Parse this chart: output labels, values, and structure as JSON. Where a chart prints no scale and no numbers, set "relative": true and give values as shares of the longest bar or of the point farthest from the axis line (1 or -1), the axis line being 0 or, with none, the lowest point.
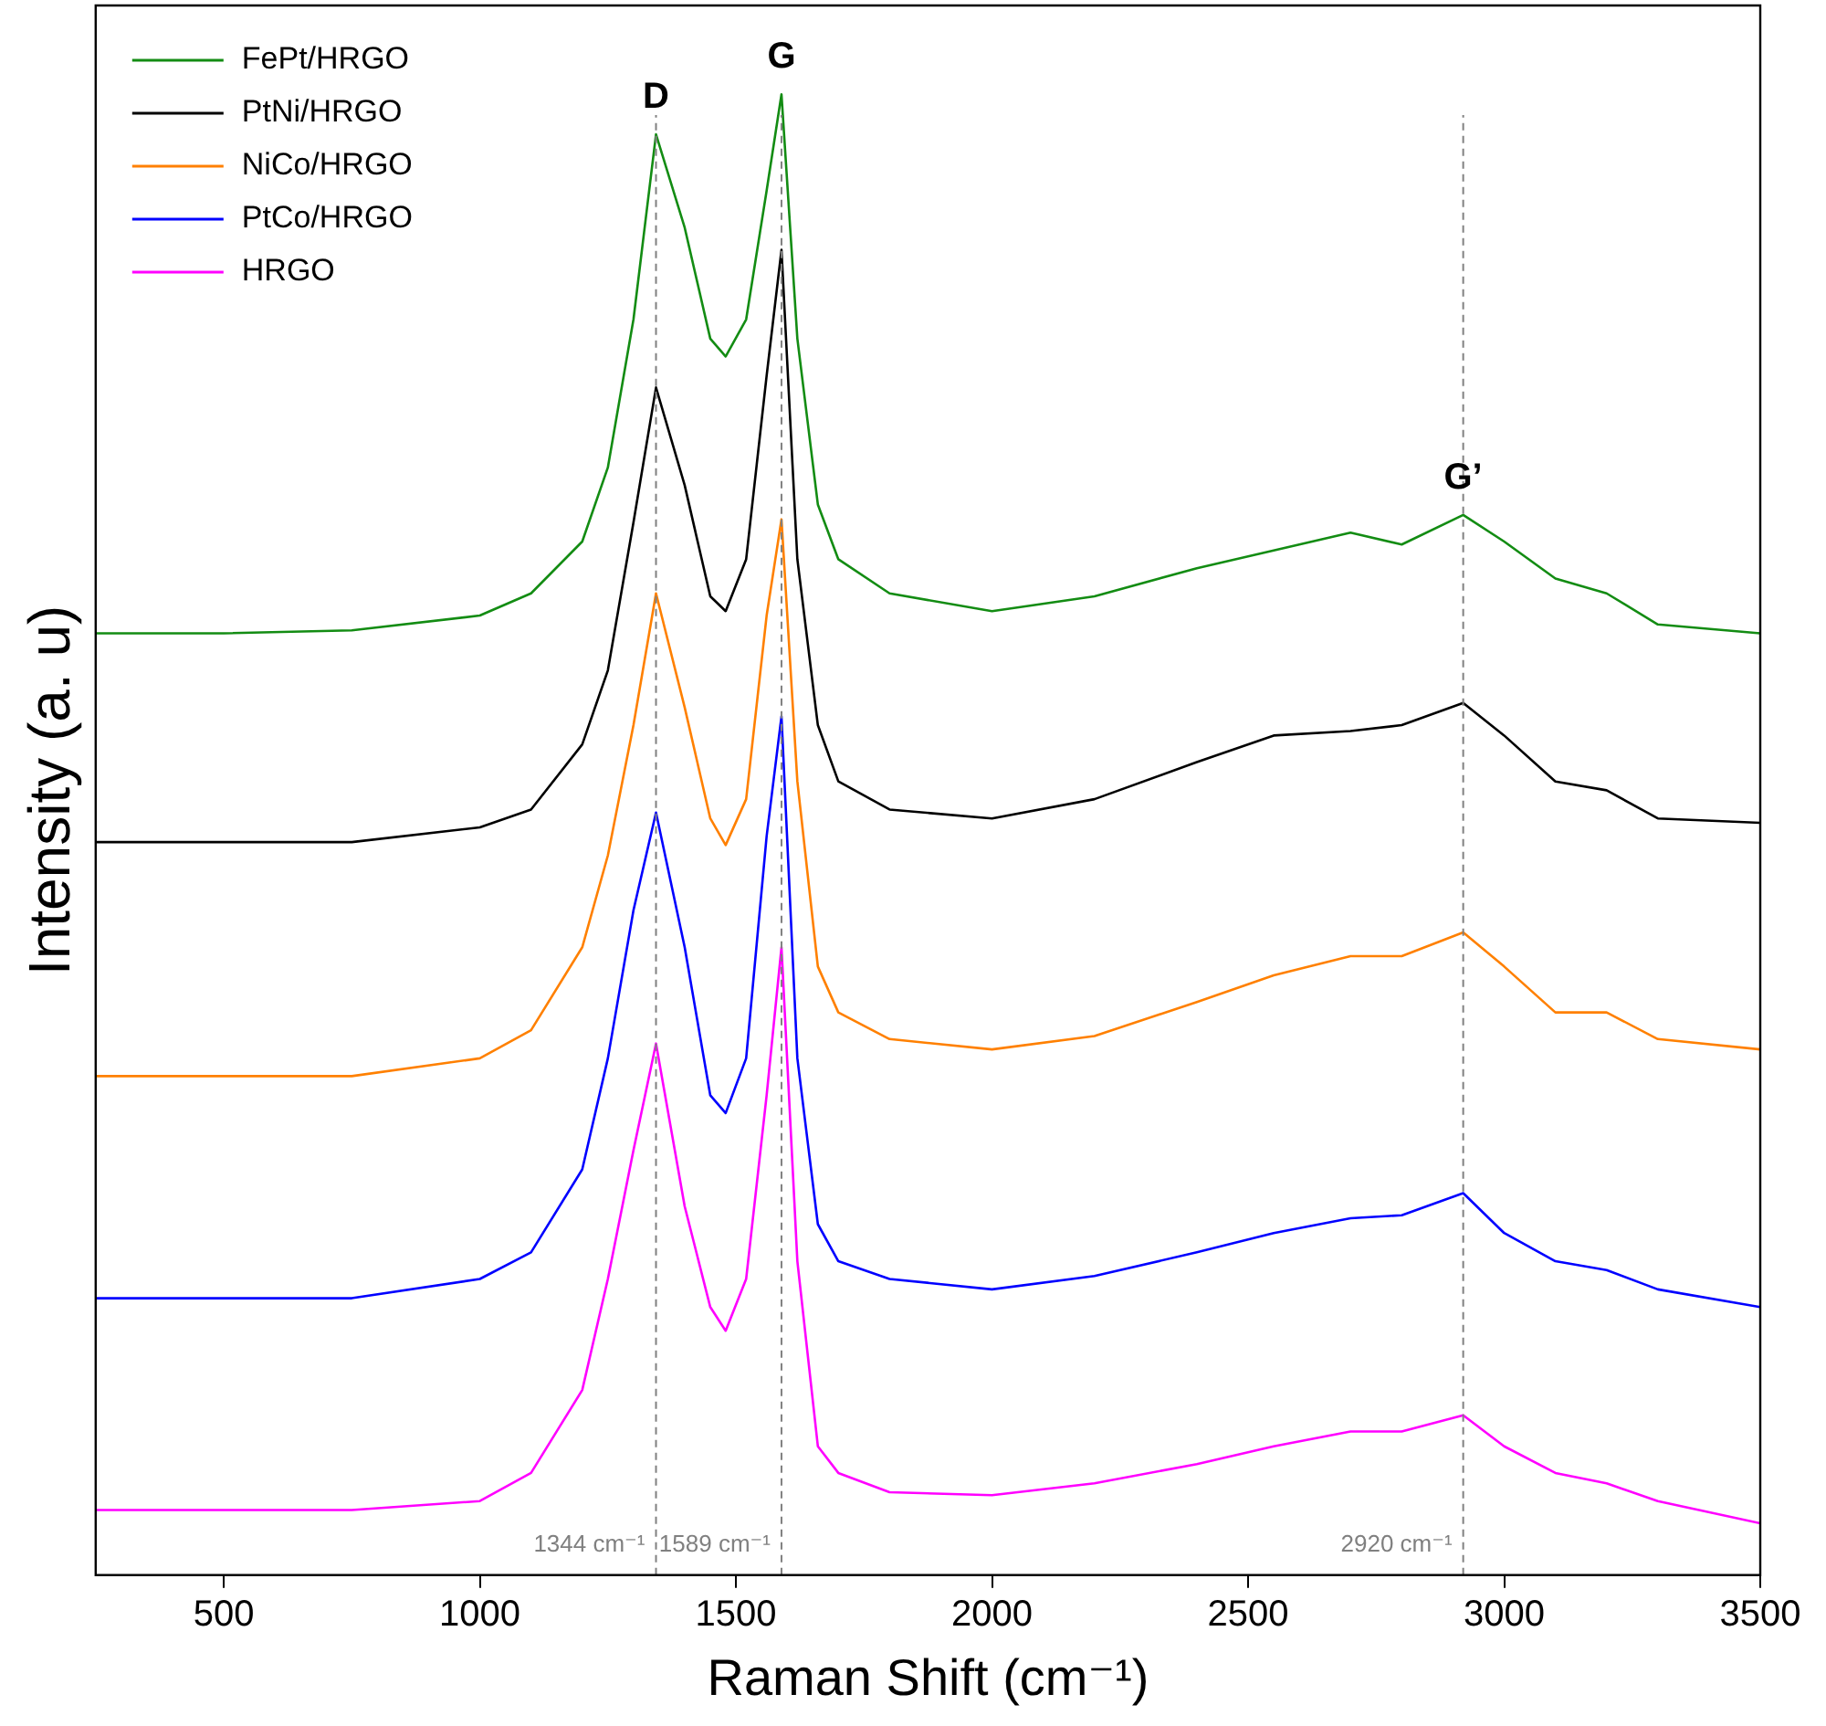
{
  "chart_data": {
    "type": "line",
    "relative": true,
    "xlabel": "Raman Shift (cm⁻¹)",
    "ylabel": "Intensity (a. u)",
    "x": [
      250,
      500,
      750,
      1000,
      1100,
      1200,
      1250,
      1300,
      1344,
      1400,
      1450,
      1480,
      1520,
      1560,
      1589,
      1620,
      1660,
      1700,
      1800,
      2000,
      2200,
      2400,
      2550,
      2700,
      2800,
      2920,
      3000,
      3100,
      3200,
      3300,
      3500
    ],
    "xlim": [
      250,
      3500
    ],
    "xticks": [
      500,
      1000,
      1500,
      2000,
      2500,
      3000,
      3500
    ],
    "grid": false,
    "legend": "top left",
    "marker": "none",
    "line_style": "solid",
    "series": [
      {
        "name": "FePt/HRGO",
        "color": "#138c13",
        "values": [
          0.636,
          0.636,
          0.638,
          0.648,
          0.663,
          0.698,
          0.748,
          0.848,
          0.973,
          0.91,
          0.835,
          0.823,
          0.848,
          0.935,
          1,
          0.835,
          0.723,
          0.686,
          0.663,
          0.651,
          0.661,
          0.68,
          0.692,
          0.704,
          0.696,
          0.716,
          0.698,
          0.673,
          0.663,
          0.642,
          0.636
        ]
      },
      {
        "name": "PtNi/HRGO",
        "color": "#000000",
        "values": [
          0.495,
          0.495,
          0.495,
          0.505,
          0.517,
          0.561,
          0.611,
          0.711,
          0.802,
          0.736,
          0.661,
          0.651,
          0.686,
          0.81,
          0.895,
          0.686,
          0.574,
          0.536,
          0.517,
          0.511,
          0.524,
          0.549,
          0.567,
          0.57,
          0.574,
          0.589,
          0.567,
          0.536,
          0.53,
          0.511,
          0.508
        ]
      },
      {
        "name": "NiCo/HRGO",
        "color": "#ff8000",
        "values": [
          0.337,
          0.337,
          0.337,
          0.349,
          0.368,
          0.424,
          0.486,
          0.574,
          0.663,
          0.586,
          0.511,
          0.493,
          0.524,
          0.648,
          0.713,
          0.536,
          0.411,
          0.38,
          0.362,
          0.355,
          0.364,
          0.387,
          0.405,
          0.418,
          0.418,
          0.434,
          0.411,
          0.38,
          0.38,
          0.362,
          0.355
        ]
      },
      {
        "name": "PtCo/HRGO",
        "color": "#0000ff",
        "values": [
          0.187,
          0.187,
          0.187,
          0.2,
          0.218,
          0.274,
          0.349,
          0.449,
          0.515,
          0.424,
          0.324,
          0.312,
          0.349,
          0.499,
          0.58,
          0.349,
          0.237,
          0.212,
          0.2,
          0.193,
          0.202,
          0.218,
          0.231,
          0.241,
          0.243,
          0.258,
          0.231,
          0.212,
          0.206,
          0.193,
          0.181
        ]
      },
      {
        "name": "HRGO",
        "color": "#ff00ff",
        "values": [
          0.044,
          0.044,
          0.044,
          0.05,
          0.069,
          0.125,
          0.2,
          0.287,
          0.359,
          0.249,
          0.181,
          0.165,
          0.2,
          0.324,
          0.424,
          0.212,
          0.087,
          0.069,
          0.056,
          0.054,
          0.062,
          0.075,
          0.087,
          0.097,
          0.097,
          0.108,
          0.087,
          0.069,
          0.062,
          0.05,
          0.035
        ]
      }
    ],
    "ref_lines": [
      {
        "axis": "x",
        "value": 1344,
        "label": "1344 cm⁻¹",
        "color": "#808080",
        "line_style": "dashed"
      },
      {
        "axis": "x",
        "value": 1589,
        "label": "1589 cm⁻¹",
        "color": "#808080",
        "line_style": "dashed"
      },
      {
        "axis": "x",
        "value": 2920,
        "label": "2920 cm⁻¹",
        "color": "#808080",
        "line_style": "dashed"
      }
    ],
    "annotations": [
      {
        "text": "D",
        "x": 1344,
        "y": 0.973
      },
      {
        "text": "G",
        "x": 1589,
        "y": 1
      },
      {
        "text": "G’",
        "x": 2920,
        "y": 0.716
      }
    ]
  }
}
